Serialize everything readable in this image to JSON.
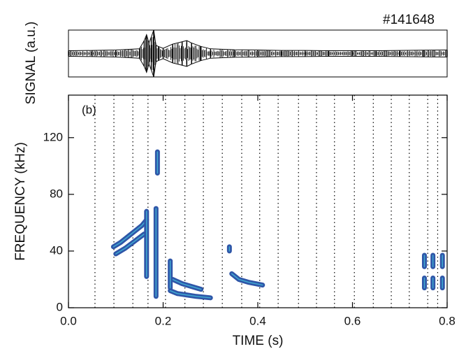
{
  "chart_data": [
    {
      "type": "envelope",
      "title": "#141648",
      "ylabel": "SIGNAL (a.u.)",
      "xlim": [
        0,
        0.8
      ],
      "ylim": [
        -1,
        1
      ],
      "color": "#000000",
      "x": [
        0,
        0.05,
        0.1,
        0.15,
        0.16,
        0.165,
        0.17,
        0.175,
        0.18,
        0.185,
        0.19,
        0.2,
        0.22,
        0.24,
        0.25,
        0.26,
        0.28,
        0.3,
        0.35,
        0.4,
        0.45,
        0.5,
        0.55,
        0.6,
        0.65,
        0.7,
        0.75,
        0.8
      ],
      "values": [
        0.12,
        0.13,
        0.15,
        0.2,
        0.55,
        0.8,
        0.45,
        0.7,
        1.0,
        0.35,
        0.3,
        0.22,
        0.4,
        0.5,
        0.55,
        0.45,
        0.3,
        0.2,
        0.16,
        0.15,
        0.13,
        0.13,
        0.12,
        0.12,
        0.12,
        0.13,
        0.14,
        0.15
      ]
    },
    {
      "type": "contour",
      "annotation": "(b)",
      "xlabel": "TIME (s)",
      "ylabel": "FREQUENCY (kHz)",
      "xlim": [
        0,
        0.8
      ],
      "ylim": [
        0,
        150
      ],
      "xticks": [
        {
          "value": 0,
          "label": "0.0"
        },
        0.2,
        0.4,
        0.6,
        0.8
      ],
      "yticks": [
        0,
        40,
        80,
        120
      ],
      "events": [
        0.056,
        0.096,
        0.136,
        0.168,
        0.205,
        0.246,
        0.285,
        0.325,
        0.366,
        0.404,
        0.443,
        0.486,
        0.524,
        0.562,
        0.604,
        0.644,
        0.682,
        0.72,
        0.759,
        0.78
      ],
      "color": "#2f56a8",
      "series": [
        {
          "x": [
            0.095,
            0.11,
            0.125,
            0.14,
            0.155,
            0.165
          ],
          "values": [
            43,
            46,
            50,
            54,
            58,
            62
          ]
        },
        {
          "x": [
            0.1,
            0.12,
            0.14,
            0.16
          ],
          "values": [
            38,
            42,
            47,
            52
          ]
        },
        {
          "x": [
            0.165,
            0.165
          ],
          "values": [
            68,
            22
          ]
        },
        {
          "x": [
            0.185,
            0.185
          ],
          "values": [
            70,
            8
          ]
        },
        {
          "x": [
            0.188,
            0.188
          ],
          "values": [
            110,
            95
          ]
        },
        {
          "x": [
            0.215,
            0.23,
            0.25,
            0.27,
            0.3
          ],
          "values": [
            12,
            10,
            9,
            8,
            7
          ]
        },
        {
          "x": [
            0.22,
            0.24,
            0.26,
            0.28
          ],
          "values": [
            20,
            17,
            15,
            13
          ]
        },
        {
          "x": [
            0.215,
            0.215
          ],
          "values": [
            33,
            14
          ]
        },
        {
          "x": [
            0.345,
            0.36,
            0.38,
            0.41
          ],
          "values": [
            24,
            20,
            18,
            16
          ]
        },
        {
          "x": [
            0.34,
            0.34
          ],
          "values": [
            43,
            40
          ]
        },
        {
          "x": [
            0.752,
            0.752
          ],
          "values": [
            37,
            29
          ]
        },
        {
          "x": [
            0.77,
            0.77
          ],
          "values": [
            37,
            29
          ]
        },
        {
          "x": [
            0.79,
            0.79
          ],
          "values": [
            37,
            29
          ]
        },
        {
          "x": [
            0.752,
            0.752
          ],
          "values": [
            21,
            14
          ]
        },
        {
          "x": [
            0.77,
            0.77
          ],
          "values": [
            21,
            14
          ]
        },
        {
          "x": [
            0.79,
            0.79
          ],
          "values": [
            21,
            14
          ]
        }
      ]
    }
  ]
}
